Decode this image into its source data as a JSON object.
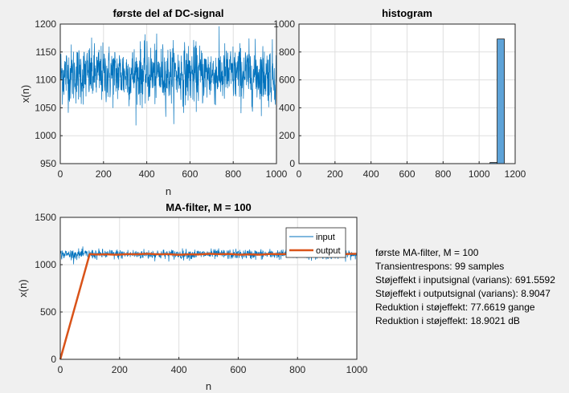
{
  "colors": {
    "background": "#f0f0f0",
    "axes_bg": "#ffffff",
    "grid": "#dfdfdf",
    "input": "#0072bd",
    "output": "#d95319",
    "hist_face": "#5ea3d8",
    "hist_edge": "#1a1a1a"
  },
  "chart_data": [
    {
      "type": "line",
      "title": "første del af DC-signal",
      "xlabel": "n",
      "ylabel": "x(n)",
      "xlim": [
        0,
        1000
      ],
      "ylim": [
        950,
        1200
      ],
      "xticks": [
        "0",
        "200",
        "400",
        "600",
        "800",
        "1000"
      ],
      "yticks": [
        "950",
        "1000",
        "1050",
        "1100",
        "1150",
        "1200"
      ],
      "grid": true,
      "series": [
        {
          "mean": 1110,
          "std": 26.3,
          "n": 1000
        }
      ]
    },
    {
      "type": "bar",
      "title": "histogram",
      "xlim": [
        0,
        1200
      ],
      "ylim": [
        0,
        1000
      ],
      "xticks": [
        "0",
        "200",
        "400",
        "600",
        "800",
        "1000",
        "1200"
      ],
      "yticks": [
        "0",
        "200",
        "400",
        "600",
        "800",
        "1000"
      ],
      "grid": true,
      "bins": [
        {
          "from": 1060,
          "to": 1100,
          "count": 8
        },
        {
          "from": 1100,
          "to": 1140,
          "count": 893
        }
      ]
    },
    {
      "type": "line",
      "title": "MA-filter, M = 100",
      "xlabel": "n",
      "ylabel": "x(n)",
      "xlim": [
        0,
        1000
      ],
      "ylim": [
        0,
        1500
      ],
      "xticks": [
        "0",
        "200",
        "400",
        "600",
        "800",
        "1000"
      ],
      "yticks": [
        "0",
        "500",
        "1000",
        "1500"
      ],
      "grid": true,
      "legend_position": "top-right",
      "series": [
        {
          "name": "input",
          "mean": 1110,
          "std": 26.3,
          "n": 1000
        },
        {
          "name": "output",
          "ramp_to": 99,
          "level": 1110,
          "ripple": 3,
          "n": 1000
        }
      ]
    }
  ],
  "stats": {
    "lines": [
      "første MA-filter, M = 100",
      "Transientrespons: 99 samples",
      "Støjeffekt i inputsignal (varians):  691.5592",
      "Støjeffekt i outputsignal (varians): 8.9047",
      "Reduktion i støjeffekt: 77.6619 gange",
      "Reduktion i støjeffekt: 18.9021 dB"
    ]
  }
}
